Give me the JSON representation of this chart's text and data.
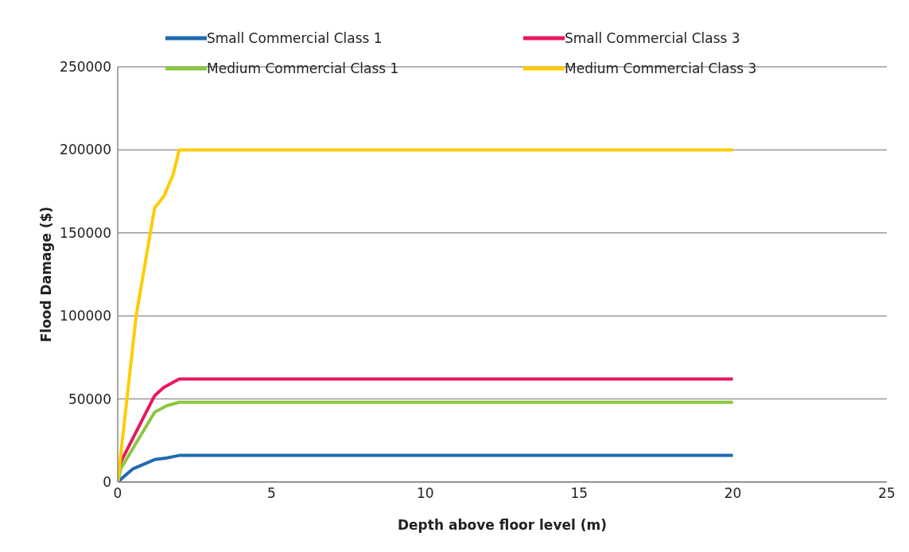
{
  "chart_data": {
    "type": "line",
    "xlabel": "Depth above floor level (m)",
    "ylabel": "Flood Damage ($)",
    "xlim": [
      0,
      25
    ],
    "xticks": [
      0,
      5,
      10,
      15,
      20,
      25
    ],
    "ylim": [
      0,
      250000
    ],
    "yticks": [
      0,
      50000,
      100000,
      150000,
      200000,
      250000
    ],
    "grid": "y",
    "legend": "top",
    "marker": "none",
    "line_style": "solid",
    "series": [
      {
        "name": "Small Commercial Class 1",
        "color": "#1f6bb0",
        "x": [
          0,
          0.5,
          1.2,
          1.6,
          2,
          20
        ],
        "values": [
          0,
          8000,
          13500,
          14500,
          16000,
          16000
        ]
      },
      {
        "name": "Small Commercial Class 3",
        "color": "#e8185c",
        "x": [
          0,
          0.1,
          1.2,
          1.5,
          2,
          20
        ],
        "values": [
          0,
          12000,
          52000,
          57000,
          62000,
          62000
        ]
      },
      {
        "name": "Medium Commercial Class 1",
        "color": "#8cc63f",
        "x": [
          0,
          0.1,
          1.2,
          1.6,
          2,
          20
        ],
        "values": [
          0,
          8000,
          42000,
          46000,
          48000,
          48000
        ]
      },
      {
        "name": "Medium Commercial Class 3",
        "color": "#ffcc00",
        "x": [
          0,
          0.6,
          1.2,
          1.5,
          1.8,
          2,
          20
        ],
        "values": [
          0,
          100000,
          165000,
          172000,
          185000,
          200000,
          200000
        ]
      }
    ]
  }
}
